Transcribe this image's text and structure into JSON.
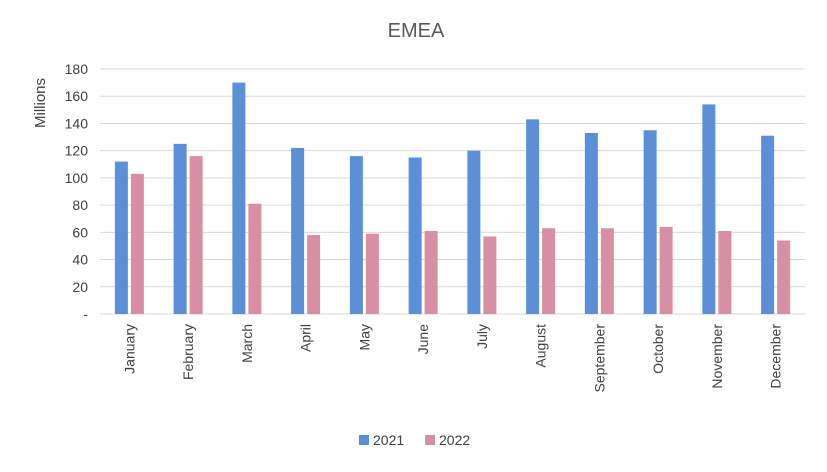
{
  "chart_data": {
    "type": "bar",
    "title": "EMEA",
    "ylabel": "Millions",
    "xlabel": "",
    "ylim": [
      0,
      180
    ],
    "yticks": [
      0,
      20,
      40,
      60,
      80,
      100,
      120,
      140,
      160,
      180
    ],
    "ytick_labels": [
      "-",
      "20",
      "40",
      "60",
      "80",
      "100",
      "120",
      "140",
      "160",
      "180"
    ],
    "grid": true,
    "legend_position": "bottom",
    "categories": [
      "January",
      "February",
      "March",
      "April",
      "May",
      "June",
      "July",
      "August",
      "September",
      "October",
      "November",
      "December"
    ],
    "series": [
      {
        "name": "2021",
        "color": "#5b8fd8",
        "values": [
          112,
          125,
          170,
          122,
          116,
          115,
          120,
          143,
          133,
          135,
          154,
          131
        ]
      },
      {
        "name": "2022",
        "color": "#d98fa3",
        "values": [
          103,
          116,
          81,
          58,
          59,
          61,
          57,
          63,
          63,
          64,
          61,
          54
        ]
      }
    ]
  }
}
